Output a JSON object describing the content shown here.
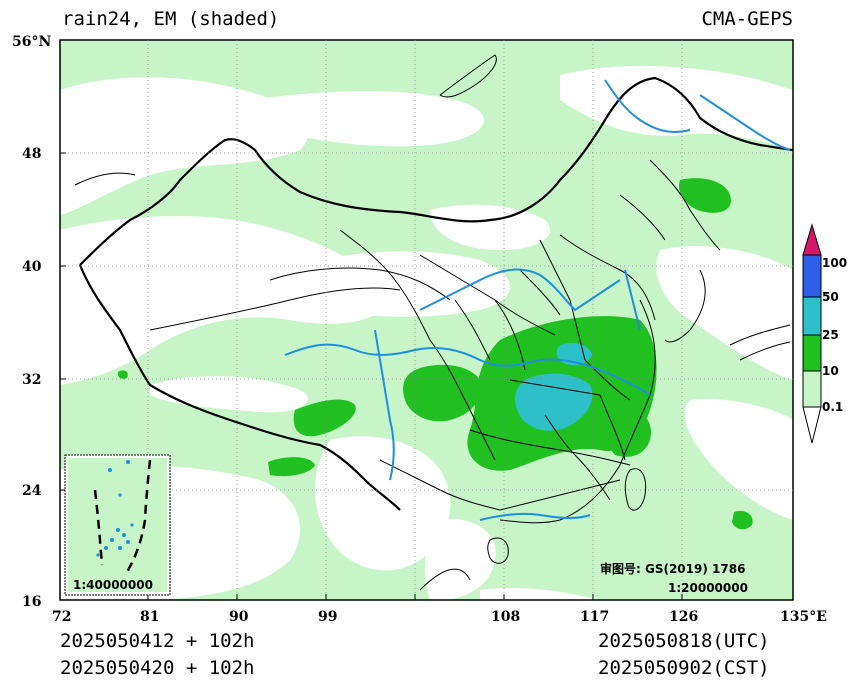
{
  "header": {
    "title": "rain24, EM (shaded)",
    "model": "CMA-GEPS"
  },
  "footer": {
    "init_utc": "2025050412 + 102h",
    "init_cst": "2025050420 + 102h",
    "valid_utc": "2025050818(UTC)",
    "valid_cst": "2025050902(CST)"
  },
  "map": {
    "lat_labels": [
      "56°N",
      "48",
      "40",
      "32",
      "24",
      "16"
    ],
    "lon_labels": [
      "72",
      "81",
      "90",
      "99",
      "108",
      "117",
      "126",
      "135°E"
    ],
    "review_number": "审图号: GS(2019) 1786",
    "main_scale": "1:20000000",
    "inset_scale": "1:40000000"
  },
  "colorbar": {
    "levels": [
      "0.1",
      "10",
      "25",
      "50",
      "100"
    ],
    "colors": [
      "#c8f5c8",
      "#1fc01f",
      "#2ec0c8",
      "#2e5fe8",
      "#d8156e"
    ]
  },
  "colors": {
    "light_rain": "#c8f5c8",
    "moderate_rain": "#1fc01f",
    "heavy_rain": "#2ec0c8",
    "river": "#1e8fe0",
    "border": "#000000"
  }
}
